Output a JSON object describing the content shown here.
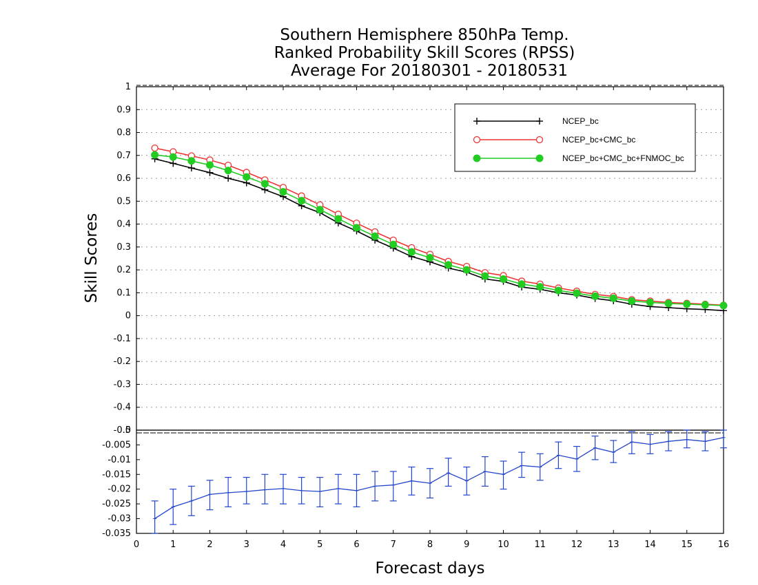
{
  "title_lines": [
    "Southern Hemisphere 850hPa Temp.",
    "Ranked Probability Skill Scores (RPSS)",
    "Average For 20180301 - 20180531"
  ],
  "chart_data": [
    {
      "type": "line",
      "title": "Southern Hemisphere 850hPa Temp. Ranked Probability Skill Scores (RPSS) Average For 20180301 - 20180531",
      "xlabel": "Forecast days",
      "ylabel": "Skill Scores",
      "xlim": [
        0,
        16
      ],
      "ylim": [
        -0.5,
        1
      ],
      "yticks": [
        "-0.5",
        "-0.4",
        "-0.3",
        "-0.2",
        "-0.1",
        "0",
        "0.1",
        "0.2",
        "0.3",
        "0.4",
        "0.5",
        "0.6",
        "0.7",
        "0.8",
        "0.9",
        "1"
      ],
      "grid": true,
      "legend_position": "top-right",
      "x": [
        0.5,
        1,
        1.5,
        2,
        2.5,
        3,
        3.5,
        4,
        4.5,
        5,
        5.5,
        6,
        6.5,
        7,
        7.5,
        8,
        8.5,
        9,
        9.5,
        10,
        10.5,
        11,
        11.5,
        12,
        12.5,
        13,
        13.5,
        14,
        14.5,
        15,
        15.5,
        16
      ],
      "series": [
        {
          "name": "NCEP_bc",
          "color": "#000000",
          "marker": "plus",
          "values": [
            0.685,
            0.665,
            0.645,
            0.625,
            0.6,
            0.58,
            0.55,
            0.52,
            0.48,
            0.45,
            0.405,
            0.37,
            0.33,
            0.295,
            0.258,
            0.235,
            0.208,
            0.19,
            0.16,
            0.15,
            0.125,
            0.115,
            0.1,
            0.09,
            0.075,
            0.065,
            0.05,
            0.04,
            0.035,
            0.03,
            0.027,
            0.022
          ]
        },
        {
          "name": "NCEP_bc+CMC_bc",
          "color": "#ee3333",
          "marker": "open-circle",
          "values": [
            0.732,
            0.716,
            0.698,
            0.68,
            0.657,
            0.626,
            0.593,
            0.56,
            0.523,
            0.484,
            0.443,
            0.404,
            0.366,
            0.33,
            0.297,
            0.268,
            0.237,
            0.215,
            0.188,
            0.175,
            0.151,
            0.138,
            0.121,
            0.107,
            0.093,
            0.084,
            0.07,
            0.064,
            0.058,
            0.054,
            0.05,
            0.046
          ]
        },
        {
          "name": "NCEP_bc+CMC_bc+FNMOC_bc",
          "color": "#22cc22",
          "marker": "filled-circle",
          "values": [
            0.702,
            0.693,
            0.676,
            0.658,
            0.634,
            0.606,
            0.576,
            0.541,
            0.502,
            0.463,
            0.423,
            0.384,
            0.347,
            0.311,
            0.278,
            0.253,
            0.222,
            0.2,
            0.173,
            0.16,
            0.138,
            0.126,
            0.11,
            0.098,
            0.085,
            0.076,
            0.064,
            0.058,
            0.053,
            0.05,
            0.047,
            0.044
          ]
        }
      ]
    },
    {
      "type": "line",
      "xlabel": "Forecast days",
      "xlim": [
        0,
        16
      ],
      "ylim": [
        -0.035,
        0
      ],
      "xticks": [
        "0",
        "1",
        "2",
        "3",
        "4",
        "5",
        "6",
        "7",
        "8",
        "9",
        "10",
        "11",
        "12",
        "13",
        "14",
        "15",
        "16"
      ],
      "yticks": [
        "-0.035",
        "-0.03",
        "-0.025",
        "-0.02",
        "-0.015",
        "-0.01",
        "-0.005",
        "0"
      ],
      "x": [
        0.5,
        1,
        1.5,
        2,
        2.5,
        3,
        3.5,
        4,
        4.5,
        5,
        5.5,
        6,
        6.5,
        7,
        7.5,
        8,
        8.5,
        9,
        9.5,
        10,
        10.5,
        11,
        11.5,
        12,
        12.5,
        13,
        13.5,
        14,
        14.5,
        15,
        15.5,
        16
      ],
      "series": [
        {
          "color": "#2244cc",
          "values": [
            -0.03,
            -0.026,
            -0.024,
            -0.0218,
            -0.0212,
            -0.0208,
            -0.0202,
            -0.0198,
            -0.0205,
            -0.0208,
            -0.0198,
            -0.0205,
            -0.019,
            -0.0186,
            -0.0172,
            -0.018,
            -0.0145,
            -0.0172,
            -0.014,
            -0.015,
            -0.012,
            -0.0125,
            -0.0085,
            -0.0098,
            -0.006,
            -0.0075,
            -0.004,
            -0.0048,
            -0.0038,
            -0.0032,
            -0.0038,
            -0.0025
          ],
          "error_low": [
            -0.036,
            -0.032,
            -0.029,
            -0.027,
            -0.026,
            -0.025,
            -0.025,
            -0.025,
            -0.025,
            -0.026,
            -0.025,
            -0.026,
            -0.024,
            -0.024,
            -0.022,
            -0.023,
            -0.019,
            -0.022,
            -0.019,
            -0.02,
            -0.016,
            -0.017,
            -0.013,
            -0.014,
            -0.01,
            -0.011,
            -0.008,
            -0.008,
            -0.007,
            -0.006,
            -0.007,
            -0.006
          ],
          "error_high": [
            -0.024,
            -0.02,
            -0.019,
            -0.017,
            -0.016,
            -0.016,
            -0.015,
            -0.015,
            -0.016,
            -0.016,
            -0.015,
            -0.015,
            -0.014,
            -0.014,
            -0.0125,
            -0.013,
            -0.0095,
            -0.0125,
            -0.009,
            -0.0105,
            -0.0075,
            -0.008,
            -0.004,
            -0.0055,
            -0.002,
            -0.0035,
            -0.0005,
            -0.0015,
            -0.0005,
            0.0,
            -0.0005,
            0.0
          ]
        }
      ]
    }
  ]
}
